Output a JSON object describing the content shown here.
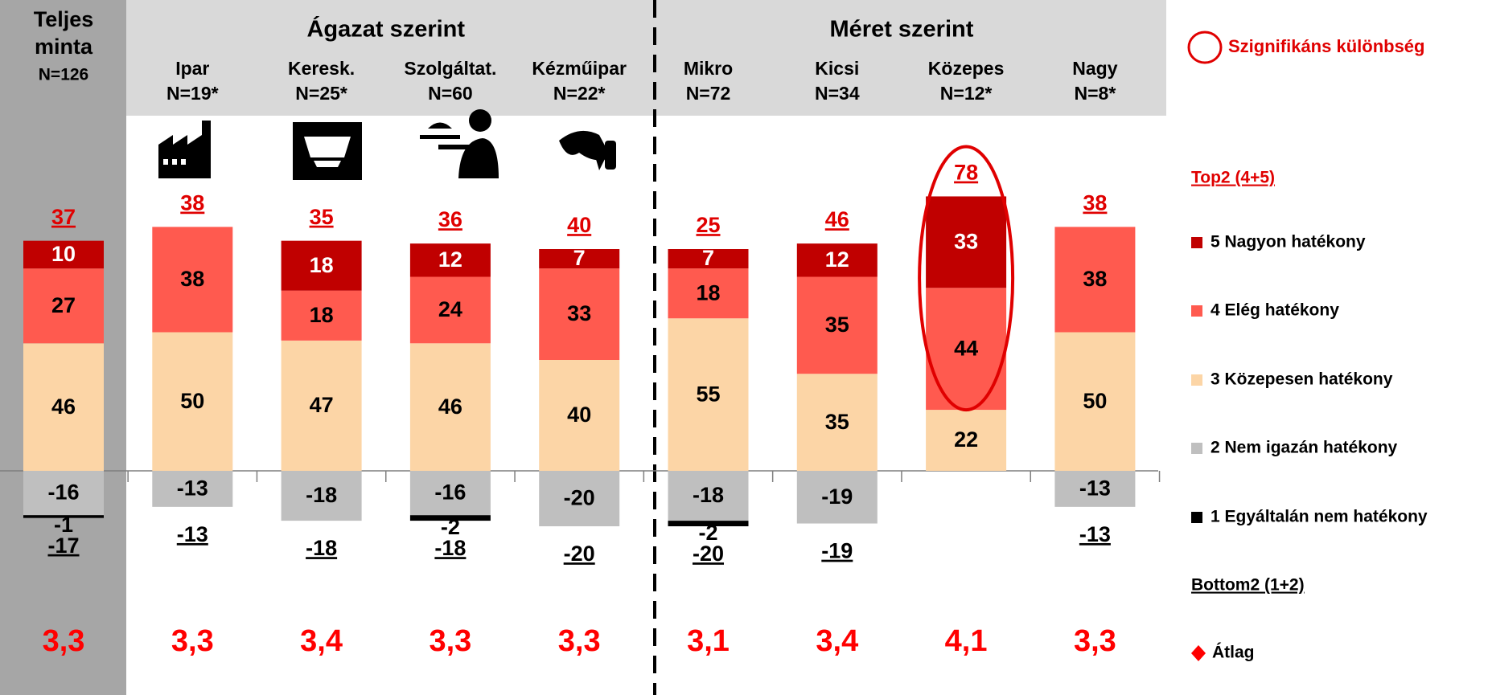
{
  "chart_data": {
    "type": "diverging_stacked_bar",
    "total": {
      "label": [
        "Teljes",
        "minta"
      ],
      "n": "N=126"
    },
    "groups": [
      {
        "label": "Ágazat szerint",
        "columns": [
          1,
          4
        ]
      },
      {
        "label": "Méret szerint",
        "columns": [
          5,
          8
        ]
      }
    ],
    "categories": [
      null,
      "Ipar",
      "Keresk.",
      "Szolgáltat.",
      "Kézműipar",
      "Mikro",
      "Kicsi",
      "Közepes",
      "Nagy"
    ],
    "sample_sizes": [
      null,
      "N=19*",
      "N=25*",
      "N=60",
      "N=22*",
      "N=72",
      "N=34",
      "N=12*",
      "N=8*"
    ],
    "series": [
      {
        "name": "5 Nagyon hatékony",
        "color": "#c00000",
        "label_color": "#ffffff",
        "values": [
          10,
          null,
          18,
          12,
          7,
          7,
          12,
          33,
          null
        ]
      },
      {
        "name": "4 Elég hatékony",
        "color": "#ff5a4f",
        "label_color": "#000000",
        "values": [
          27,
          38,
          18,
          24,
          33,
          18,
          35,
          44,
          38
        ]
      },
      {
        "name": "3 Közepesen hatékony",
        "color": "#fcd5a6",
        "label_color": "#000000",
        "values": [
          46,
          50,
          47,
          46,
          40,
          55,
          35,
          22,
          50
        ]
      },
      {
        "name": "2 Nem igazán hatékony",
        "color": "#bfbfbf",
        "label_color": "#000000",
        "values": [
          -16,
          -13,
          -18,
          -16,
          -20,
          -18,
          -19,
          null,
          -13
        ]
      },
      {
        "name": "1 Egyáltalán nem hatékony",
        "color": "#000000",
        "label_color": "#000000",
        "values": [
          -1,
          null,
          null,
          -2,
          null,
          -2,
          null,
          null,
          null
        ]
      }
    ],
    "top2": {
      "name": "Top2 (4+5)",
      "color": "#e00000",
      "values": [
        37,
        38,
        35,
        36,
        40,
        25,
        46,
        78,
        38
      ]
    },
    "bottom2": {
      "name": "Bottom2 (1+2)",
      "color": "#000000",
      "values": [
        -17,
        -13,
        -18,
        -18,
        -20,
        -20,
        -19,
        null,
        -13
      ]
    },
    "average": {
      "name": "Átlag",
      "color": "#ff0000",
      "values": [
        3.3,
        3.3,
        3.4,
        3.3,
        3.3,
        3.1,
        3.4,
        4.1,
        3.3
      ],
      "value_labels": [
        "3,3",
        "3,3",
        "3,4",
        "3,3",
        "3,3",
        "3,1",
        "3,4",
        "4,1",
        "3,3"
      ]
    },
    "significance": {
      "label": "Szignifikáns különbség",
      "color": "#e00000",
      "columns": [
        7
      ]
    }
  }
}
